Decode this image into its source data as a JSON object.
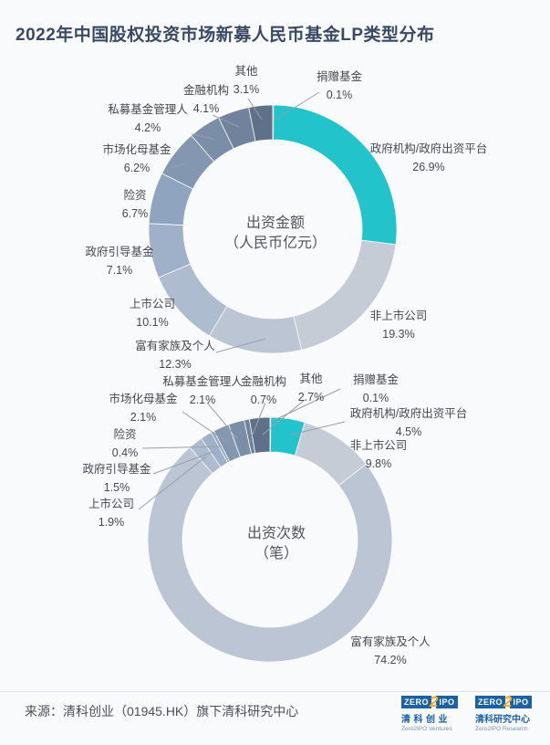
{
  "title": "2022年中国股权投资市场新募人民币基金LP类型分布",
  "accent_color": "#23c3cb",
  "chart_data": [
    {
      "type": "pie",
      "subtype": "donut",
      "center_label": [
        "出资金额",
        "（人民币亿元）"
      ],
      "unit": "%",
      "legend": "none",
      "slices": [
        {
          "label": "捐赠基金",
          "value": 0.1,
          "pct_text": "0.1%",
          "color": "#4e5e76"
        },
        {
          "label": "政府机构/政府出资平台",
          "value": 26.9,
          "pct_text": "26.9%",
          "color": "#23c3cb"
        },
        {
          "label": "非上市公司",
          "value": 19.3,
          "pct_text": "19.3%",
          "color": "#c6ccd6"
        },
        {
          "label": "富有家族及个人",
          "value": 12.3,
          "pct_text": "12.3%",
          "color": "#bcc5d3"
        },
        {
          "label": "上市公司",
          "value": 10.1,
          "pct_text": "10.1%",
          "color": "#adbccf"
        },
        {
          "label": "政府引导基金",
          "value": 7.1,
          "pct_text": "7.1%",
          "color": "#9fb1c8"
        },
        {
          "label": "险资",
          "value": 6.7,
          "pct_text": "6.7%",
          "color": "#8fa4be"
        },
        {
          "label": "市场化母基金",
          "value": 6.2,
          "pct_text": "6.2%",
          "color": "#8497b1"
        },
        {
          "label": "私募基金管理人",
          "value": 4.2,
          "pct_text": "4.2%",
          "color": "#7b8ea7"
        },
        {
          "label": "金融机构",
          "value": 4.1,
          "pct_text": "4.1%",
          "color": "#71839c"
        },
        {
          "label": "其他",
          "value": 3.1,
          "pct_text": "3.1%",
          "color": "#5f7089"
        }
      ]
    },
    {
      "type": "pie",
      "subtype": "donut",
      "center_label": [
        "出资次数",
        "（笔）"
      ],
      "unit": "%",
      "legend": "none",
      "slices": [
        {
          "label": "捐赠基金",
          "value": 0.1,
          "pct_text": "0.1%",
          "color": "#4e5e76"
        },
        {
          "label": "政府机构/政府出资平台",
          "value": 4.5,
          "pct_text": "4.5%",
          "color": "#23c3cb"
        },
        {
          "label": "非上市公司",
          "value": 9.8,
          "pct_text": "9.8%",
          "color": "#c6ccd6"
        },
        {
          "label": "富有家族及个人",
          "value": 74.2,
          "pct_text": "74.2%",
          "color": "#bcc5d3"
        },
        {
          "label": "上市公司",
          "value": 1.9,
          "pct_text": "1.9%",
          "color": "#adbccf"
        },
        {
          "label": "政府引导基金",
          "value": 1.5,
          "pct_text": "1.5%",
          "color": "#9fb1c8"
        },
        {
          "label": "险资",
          "value": 0.4,
          "pct_text": "0.4%",
          "color": "#8fa4be"
        },
        {
          "label": "市场化母基金",
          "value": 2.1,
          "pct_text": "2.1%",
          "color": "#8497b1"
        },
        {
          "label": "私募基金管理人",
          "value": 2.1,
          "pct_text": "2.1%",
          "color": "#7b8ea7"
        },
        {
          "label": "金融机构",
          "value": 0.7,
          "pct_text": "0.7%",
          "color": "#71839c"
        },
        {
          "label": "其他",
          "value": 2.7,
          "pct_text": "2.7%",
          "color": "#5f7089"
        }
      ]
    }
  ],
  "footer": {
    "source": "来源：清科创业（01945.HK）旗下清科研究中心",
    "logos": [
      {
        "zero": "ZERO",
        "two": "2",
        "ipo": "IPO",
        "cn": "清科创业",
        "en": "Zero2IPO Ventures"
      },
      {
        "zero": "ZERO",
        "two": "2",
        "ipo": "IPO",
        "cn": "清科研究中心",
        "en": "Zero2IPO Research"
      }
    ]
  }
}
